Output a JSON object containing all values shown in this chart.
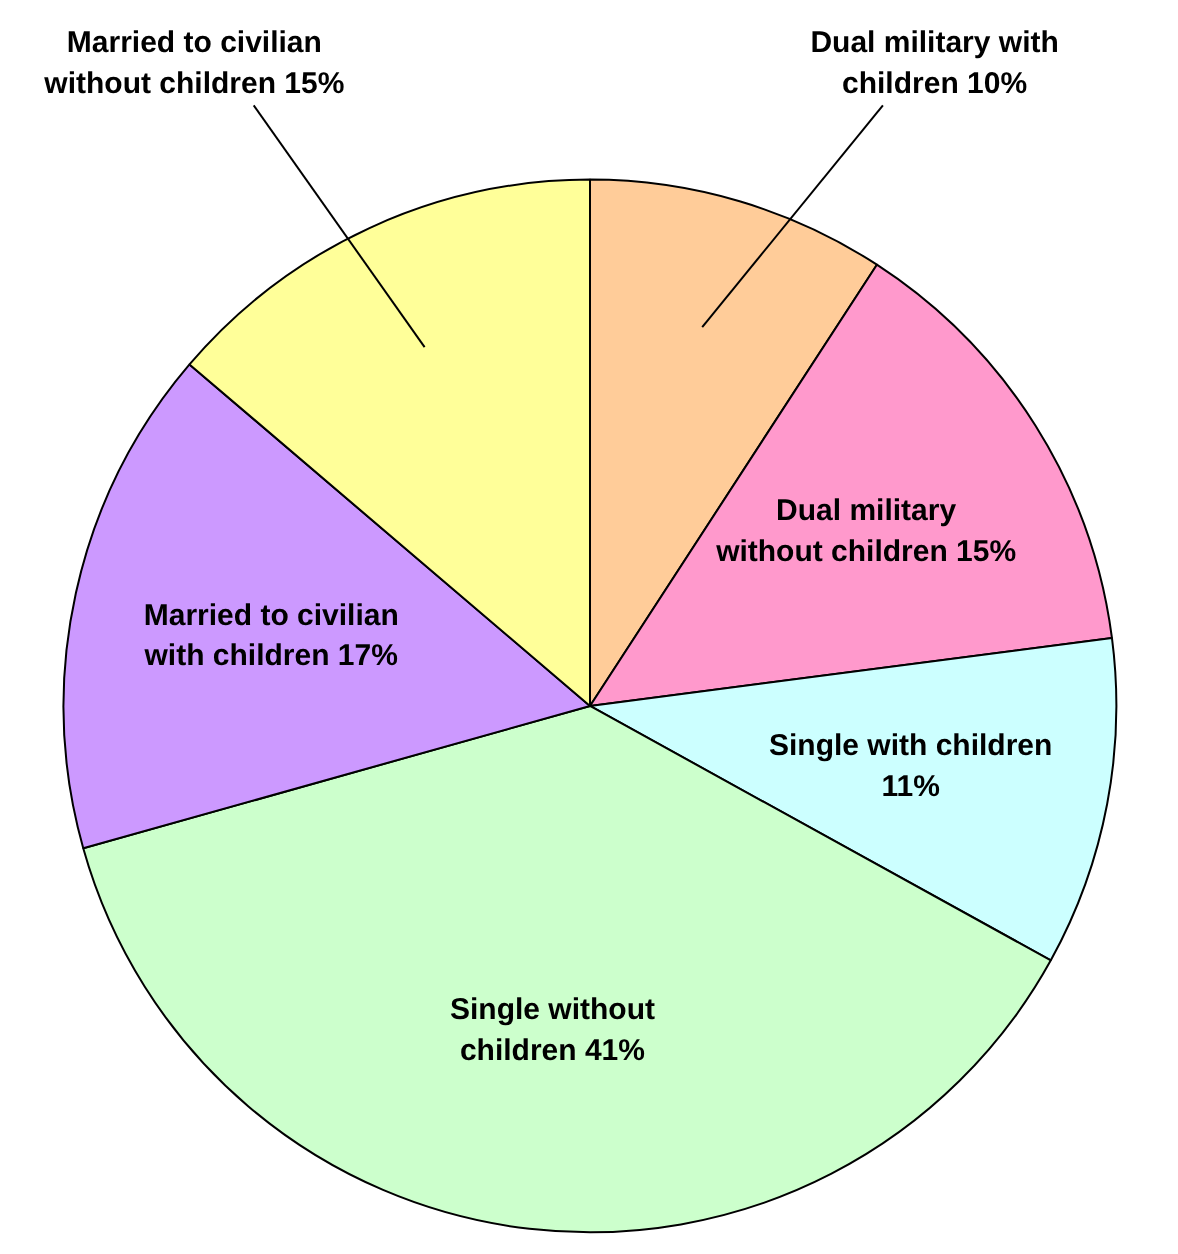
{
  "chart_data": {
    "type": "pie",
    "categories": [
      "Dual military with children",
      "Dual military without children",
      "Single with children",
      "Single without children",
      "Married to civilian with children",
      "Married to civilian without children"
    ],
    "values": [
      10,
      15,
      11,
      41,
      17,
      15
    ],
    "value_labels": [
      "10%",
      "15%",
      "11%",
      "41%",
      "17%",
      "15%"
    ],
    "colors": [
      "#ffcc99",
      "#ff99cc",
      "#ccffff",
      "#ccffcc",
      "#cc99ff",
      "#ffff99"
    ]
  }
}
